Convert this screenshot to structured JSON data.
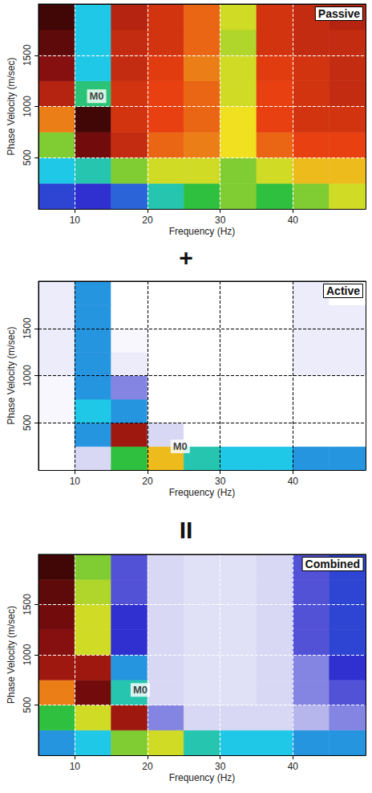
{
  "chart_data": [
    {
      "type": "heatmap",
      "title": "Passive",
      "xlabel": "Frequency (Hz)",
      "ylabel": "Phase Velocity (m/sec)",
      "xlim": [
        5,
        50
      ],
      "ylim": [
        0,
        2000
      ],
      "xticks": [
        10,
        20,
        30,
        40
      ],
      "yticks": [
        500,
        1000,
        1500
      ],
      "grid": true,
      "x_edges": [
        5,
        10,
        15,
        20,
        25,
        30,
        35,
        40,
        45,
        50
      ],
      "y_edges": [
        0,
        250,
        500,
        750,
        1000,
        1250,
        1500,
        1750,
        2000
      ],
      "value_range": [
        0,
        1
      ],
      "values": [
        [
          0.22,
          0.2,
          0.25,
          0.4,
          0.5,
          0.55,
          0.5,
          0.55,
          0.6
        ],
        [
          0.35,
          0.4,
          0.55,
          0.6,
          0.6,
          0.55,
          0.6,
          0.65,
          0.65
        ],
        [
          0.55,
          0.9,
          0.8,
          0.72,
          0.7,
          0.62,
          0.72,
          0.75,
          0.75
        ],
        [
          0.7,
          0.95,
          0.78,
          0.75,
          0.72,
          0.62,
          0.75,
          0.78,
          0.78
        ],
        [
          0.82,
          0.45,
          0.78,
          0.75,
          0.72,
          0.6,
          0.75,
          0.78,
          0.8
        ],
        [
          0.88,
          0.35,
          0.8,
          0.76,
          0.7,
          0.6,
          0.76,
          0.78,
          0.8
        ],
        [
          0.92,
          0.35,
          0.8,
          0.78,
          0.72,
          0.58,
          0.78,
          0.8,
          0.8
        ],
        [
          0.95,
          0.35,
          0.82,
          0.78,
          0.72,
          0.6,
          0.78,
          0.8,
          0.82
        ]
      ],
      "annotations": [
        {
          "text": "M0",
          "x": 13,
          "y": 1100
        }
      ]
    },
    {
      "type": "heatmap",
      "title": "Active",
      "xlabel": "Frequency (Hz)",
      "ylabel": "Phase Velocity (m/sec)",
      "xlim": [
        5,
        50
      ],
      "ylim": [
        0,
        2000
      ],
      "xticks": [
        10,
        20,
        30,
        40
      ],
      "yticks": [
        500,
        1000,
        1500
      ],
      "grid": true,
      "x_edges": [
        5,
        10,
        15,
        20,
        25,
        30,
        35,
        40,
        45,
        50
      ],
      "y_edges": [
        0,
        250,
        500,
        750,
        1000,
        1250,
        1500,
        1750,
        2000
      ],
      "value_range": [
        0,
        1
      ],
      "values": [
        [
          0,
          0.1,
          0.5,
          0.65,
          0.4,
          0.35,
          0.35,
          0.3,
          0.3
        ],
        [
          0,
          0.3,
          0.85,
          0.1,
          0,
          0,
          0,
          0,
          0
        ],
        [
          0.02,
          0.35,
          0.3,
          0,
          0,
          0,
          0,
          0,
          0
        ],
        [
          0.02,
          0.3,
          0.15,
          0,
          0,
          0,
          0,
          0,
          0
        ],
        [
          0.05,
          0.3,
          0.05,
          0,
          0,
          0,
          0,
          0.05,
          0.05
        ],
        [
          0.05,
          0.3,
          0.02,
          0,
          0,
          0,
          0,
          0.05,
          0.05
        ],
        [
          0.05,
          0.3,
          0,
          0,
          0,
          0,
          0,
          0.05,
          0.05
        ],
        [
          0.05,
          0.3,
          0,
          0,
          0,
          0,
          0,
          0.05,
          0
        ]
      ],
      "annotations": [
        {
          "text": "M0",
          "x": 24.5,
          "y": 250
        }
      ]
    },
    {
      "type": "heatmap",
      "title": "Combined",
      "xlabel": "Frequency (Hz)",
      "ylabel": "Phase Velocity (m/sec)",
      "xlim": [
        5,
        50
      ],
      "ylim": [
        0,
        2000
      ],
      "xticks": [
        10,
        20,
        30,
        40
      ],
      "yticks": [
        500,
        1000,
        1500
      ],
      "grid": true,
      "x_edges": [
        5,
        10,
        15,
        20,
        25,
        30,
        35,
        40,
        45,
        50
      ],
      "y_edges": [
        0,
        250,
        500,
        750,
        1000,
        1250,
        1500,
        1750,
        2000
      ],
      "value_range": [
        0,
        1
      ],
      "values": [
        [
          0.3,
          0.35,
          0.55,
          0.6,
          0.4,
          0.35,
          0.35,
          0.3,
          0.3
        ],
        [
          0.5,
          0.6,
          0.85,
          0.15,
          0.1,
          0.1,
          0.1,
          0.12,
          0.15
        ],
        [
          0.7,
          0.9,
          0.4,
          0.1,
          0.08,
          0.08,
          0.1,
          0.15,
          0.18
        ],
        [
          0.85,
          0.85,
          0.3,
          0.1,
          0.08,
          0.08,
          0.1,
          0.15,
          0.2
        ],
        [
          0.88,
          0.6,
          0.2,
          0.1,
          0.08,
          0.08,
          0.1,
          0.18,
          0.22
        ],
        [
          0.9,
          0.6,
          0.2,
          0.1,
          0.08,
          0.08,
          0.1,
          0.18,
          0.22
        ],
        [
          0.92,
          0.58,
          0.18,
          0.1,
          0.08,
          0.08,
          0.1,
          0.18,
          0.22
        ],
        [
          0.95,
          0.55,
          0.18,
          0.1,
          0.08,
          0.08,
          0.1,
          0.18,
          0.22
        ]
      ],
      "annotations": [
        {
          "text": "M0",
          "x": 19,
          "y": 650
        }
      ]
    }
  ],
  "separators": [
    "+",
    "II"
  ]
}
